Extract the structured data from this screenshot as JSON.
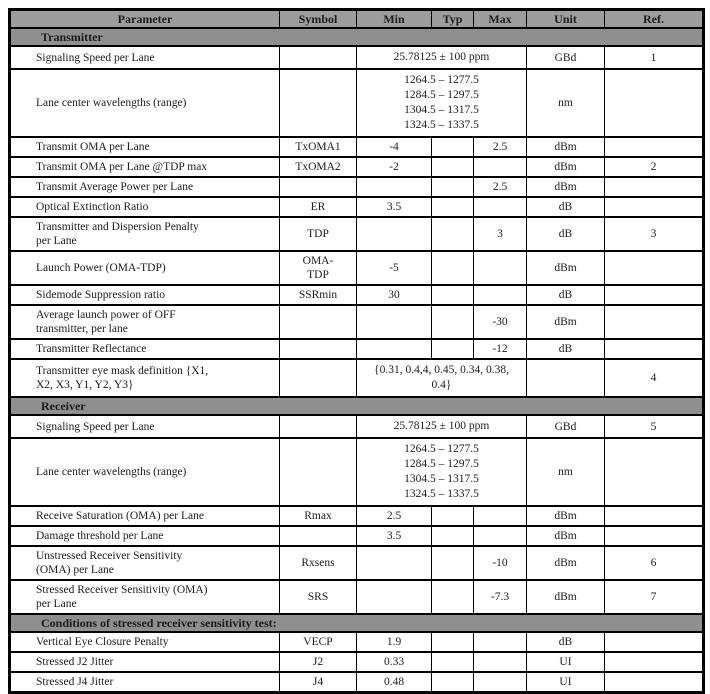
{
  "table": {
    "colors": {
      "header_bg": "#9d9d9d",
      "section_bg": "#8f8f8f",
      "border": "#000000",
      "text": "#1c1c1c"
    },
    "columns": [
      "Parameter",
      "Symbol",
      "Min",
      "Typ",
      "Max",
      "Unit",
      "Ref."
    ],
    "sections": [
      {
        "title": "Transmitter",
        "rows": [
          {
            "parameter": "Signaling Speed per Lane",
            "symbol": "",
            "range": "25.78125 ± 100 ppm",
            "unit": "GBd",
            "ref": "1"
          },
          {
            "parameter": "Lane center wavelengths (range)",
            "symbol": "",
            "range": "1264.5 – 1277.5\n1284.5 – 1297.5\n1304.5 – 1317.5\n1324.5 – 1337.5",
            "unit": "nm",
            "ref": ""
          },
          {
            "parameter": "Transmit OMA per Lane",
            "symbol": "TxOMA1",
            "min": "-4",
            "typ": "",
            "max": "2.5",
            "unit": "dBm",
            "ref": ""
          },
          {
            "parameter": "Transmit OMA per Lane @TDP max",
            "symbol": "TxOMA2",
            "min": "-2",
            "typ": "",
            "max": "",
            "unit": "dBm",
            "ref": "2"
          },
          {
            "parameter": "Transmit Average Power per Lane",
            "symbol": "",
            "min": "",
            "typ": "",
            "max": "2.5",
            "unit": "dBm",
            "ref": ""
          },
          {
            "parameter": "Optical Extinction Ratio",
            "symbol": "ER",
            "min": "3.5",
            "typ": "",
            "max": "",
            "unit": "dB",
            "ref": ""
          },
          {
            "parameter": "Transmitter and Dispersion Penalty\nper Lane",
            "symbol": "TDP",
            "min": "",
            "typ": "",
            "max": "3",
            "unit": "dB",
            "ref": "3"
          },
          {
            "parameter": "Launch Power (OMA-TDP)",
            "symbol": "OMA-\nTDP",
            "min": "-5",
            "typ": "",
            "max": "",
            "unit": "dBm",
            "ref": ""
          },
          {
            "parameter": "Sidemode Suppression ratio",
            "symbol": "SSRmin",
            "min": "30",
            "typ": "",
            "max": "",
            "unit": "dB",
            "ref": ""
          },
          {
            "parameter": "Average launch power of OFF\ntransmitter, per lane",
            "symbol": "",
            "min": "",
            "typ": "",
            "max": "-30",
            "unit": "dBm",
            "ref": ""
          },
          {
            "parameter": "Transmitter Reflectance",
            "symbol": "",
            "min": "",
            "typ": "",
            "max": "-12",
            "unit": "dB",
            "ref": ""
          },
          {
            "parameter": "Transmitter eye mask definition {X1,\nX2, X3, Y1, Y2, Y3}",
            "symbol": "",
            "range": "{0.31, 0.4,4, 0.45, 0.34, 0.38,\n0.4}",
            "unit": "",
            "ref": "4"
          }
        ]
      },
      {
        "title": "Receiver",
        "rows": [
          {
            "parameter": "Signaling Speed per Lane",
            "symbol": "",
            "range": "25.78125 ± 100 ppm",
            "unit": "GBd",
            "ref": "5"
          },
          {
            "parameter": "Lane center wavelengths (range)",
            "symbol": "",
            "range": "1264.5 – 1277.5\n1284.5 – 1297.5\n1304.5 – 1317.5\n1324.5 – 1337.5",
            "unit": "nm",
            "ref": ""
          },
          {
            "parameter": "Receive Saturation (OMA) per Lane",
            "symbol": "Rmax",
            "min": "2.5",
            "typ": "",
            "max": "",
            "unit": "dBm",
            "ref": ""
          },
          {
            "parameter": "Damage threshold per Lane",
            "symbol": "",
            "min": "3.5",
            "typ": "",
            "max": "",
            "unit": "dBm",
            "ref": ""
          },
          {
            "parameter": "Unstressed Receiver Sensitivity\n(OMA) per Lane",
            "symbol": "Rxsens",
            "min": "",
            "typ": "",
            "max": "-10",
            "unit": "dBm",
            "ref": "6"
          },
          {
            "parameter": "Stressed Receiver Sensitivity (OMA)\nper Lane",
            "symbol": "SRS",
            "min": "",
            "typ": "",
            "max": "-7.3",
            "unit": "dBm",
            "ref": "7"
          }
        ]
      },
      {
        "title": "Conditions of stressed receiver sensitivity test:",
        "rows": [
          {
            "parameter": "Vertical Eye Closure Penalty",
            "symbol": "VECP",
            "min": "1.9",
            "typ": "",
            "max": "",
            "unit": "dB",
            "ref": ""
          },
          {
            "parameter": "Stressed J2 Jitter",
            "symbol": "J2",
            "min": "0.33",
            "typ": "",
            "max": "",
            "unit": "UI",
            "ref": ""
          },
          {
            "parameter": "Stressed J4 Jitter",
            "symbol": "J4",
            "min": "0.48",
            "typ": "",
            "max": "",
            "unit": "UI",
            "ref": ""
          }
        ]
      }
    ]
  }
}
